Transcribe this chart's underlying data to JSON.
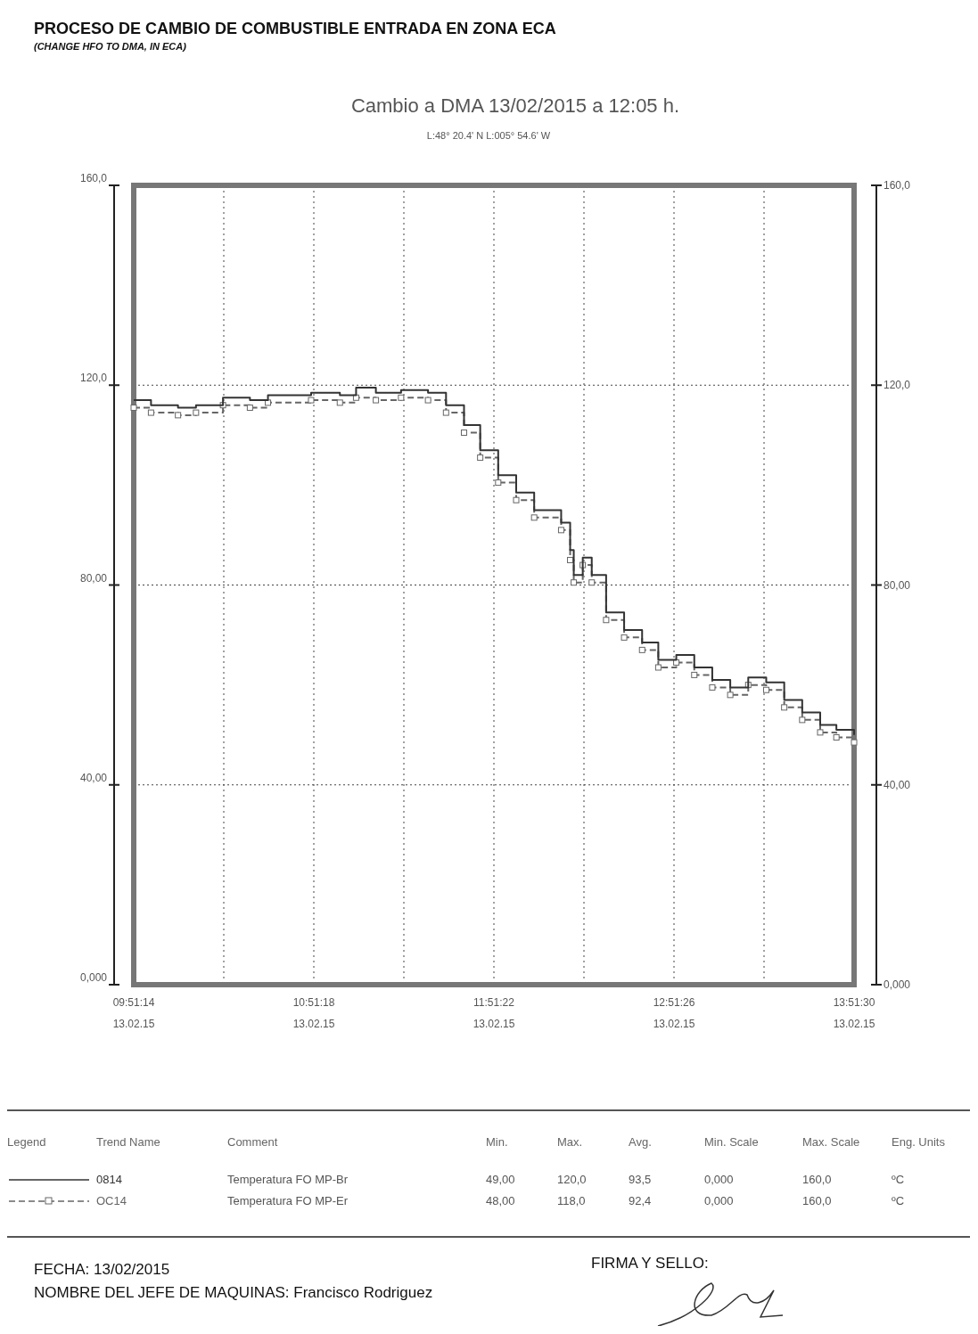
{
  "chart_data": {
    "type": "step",
    "title": "PROCESO DE CAMBIO DE COMBUSTIBLE ENTRADA EN ZONA ECA",
    "subtitle": "(CHANGE HFO TO DMA, IN ECA)",
    "x": [
      "2015-02-13T09:51:14",
      "2015-02-13T09:57:00",
      "2015-02-13T10:06:00",
      "2015-02-13T10:12:00",
      "2015-02-13T10:21:00",
      "2015-02-13T10:30:00",
      "2015-02-13T10:36:00",
      "2015-02-13T10:50:24",
      "2015-02-13T11:00:00",
      "2015-02-13T11:05:24",
      "2015-02-13T11:12:00",
      "2015-02-13T11:20:24",
      "2015-02-13T11:29:24",
      "2015-02-13T11:35:24",
      "2015-02-13T11:41:24",
      "2015-02-13T11:46:48",
      "2015-02-13T11:52:48",
      "2015-02-13T11:58:48",
      "2015-02-13T12:04:48",
      "2015-02-13T12:13:48",
      "2015-02-13T12:16:48",
      "2015-02-13T12:18:00",
      "2015-02-13T12:21:00",
      "2015-02-13T12:24:00",
      "2015-02-13T12:28:48",
      "2015-02-13T12:34:48",
      "2015-02-13T12:40:48",
      "2015-02-13T12:46:12",
      "2015-02-13T12:52:12",
      "2015-02-13T12:58:12",
      "2015-02-13T13:04:12",
      "2015-02-13T13:10:12",
      "2015-02-13T13:16:12",
      "2015-02-13T13:22:12",
      "2015-02-13T13:28:12",
      "2015-02-13T13:34:12",
      "2015-02-13T13:40:12",
      "2015-02-13T13:45:36",
      "2015-02-13T13:51:30"
    ],
    "series": [
      {
        "name": "0814",
        "color": "#333333",
        "line_style": "solid",
        "marker": "none",
        "values": [
          117,
          116,
          115.5,
          116,
          117.5,
          117,
          118,
          118.5,
          118,
          119.5,
          118.5,
          119,
          118.5,
          116,
          112,
          107,
          102,
          98.5,
          95,
          92.5,
          87,
          82,
          85.5,
          82,
          74.5,
          71,
          68.5,
          65,
          66,
          63.5,
          61,
          59.5,
          61.5,
          60.5,
          57,
          54.5,
          52,
          51,
          50
        ]
      },
      {
        "name": "OC14",
        "color": "#666666",
        "line_style": "dashed",
        "marker": "square",
        "values": [
          115.5,
          114.5,
          114,
          114.5,
          116,
          115.5,
          116.5,
          117,
          116.5,
          117.5,
          117,
          117.5,
          117,
          114.5,
          110.5,
          105.5,
          100.5,
          97,
          93.5,
          91,
          85,
          80.5,
          84,
          80.5,
          73,
          69.5,
          67,
          63.5,
          64.5,
          62,
          59.5,
          58,
          60,
          59,
          55.5,
          53,
          50.5,
          49.5,
          48.5
        ]
      }
    ],
    "xlim": [
      "2015-02-13T09:51:14",
      "2015-02-13T13:51:30"
    ],
    "xticks": [
      {
        "value": "2015-02-13T09:51:14",
        "label": "09:51:14\n13.02.15"
      },
      {
        "value": "2015-02-13T10:21:16",
        "label": null
      },
      {
        "value": "2015-02-13T10:51:18",
        "label": "10:51:18\n13.02.15"
      },
      {
        "value": "2015-02-13T11:21:20",
        "label": null
      },
      {
        "value": "2015-02-13T11:51:22",
        "label": "11:51:22\n13.02.15"
      },
      {
        "value": "2015-02-13T12:21:24",
        "label": null
      },
      {
        "value": "2015-02-13T12:51:26",
        "label": "12:51:26\n13.02.15"
      },
      {
        "value": "2015-02-13T13:21:28",
        "label": null
      },
      {
        "value": "2015-02-13T13:51:30",
        "label": "13:51:30\n13.02.15"
      }
    ],
    "ylim": [
      0,
      160
    ],
    "yticks": [
      {
        "value": 0,
        "label": "0,000"
      },
      {
        "value": 40,
        "label": "40,00"
      },
      {
        "value": 80,
        "label": "80,00"
      },
      {
        "value": 120,
        "label": "120,0"
      },
      {
        "value": 160,
        "label": "160,0"
      }
    ],
    "y2lim": [
      0,
      160
    ],
    "y2ticks": [
      {
        "value": 0,
        "label": "0,000"
      },
      {
        "value": 40,
        "label": "40,00"
      },
      {
        "value": 80,
        "label": "80,00"
      },
      {
        "value": 120,
        "label": "120,0"
      },
      {
        "value": 160,
        "label": "160,0"
      }
    ],
    "grid": true,
    "legend": "bottom",
    "annotations": [
      "Cambio a DMA 13/02/2015 a 12:05 h.",
      "L:48° 20.4' N    L:005° 54.6' W",
      "Legend",
      "Trend Name",
      "Comment",
      "Min.",
      "Max.",
      "Avg.",
      "Min. Scale",
      "Max. Scale",
      "Eng. Units",
      "Temperatura FO MP-Br",
      "49,00",
      "120,0",
      "93,5",
      "0,000",
      "160,0",
      "ºC",
      "Temperatura FO MP-Er",
      "48,00",
      "118,0",
      "92,4",
      "0,000",
      "160,0",
      "ºC",
      "FECHA: 13/02/2015",
      "NOMBRE DEL JEFE DE MAQUINAS: Francisco Rodriguez",
      "FIRMA Y SELLO:"
    ]
  }
}
